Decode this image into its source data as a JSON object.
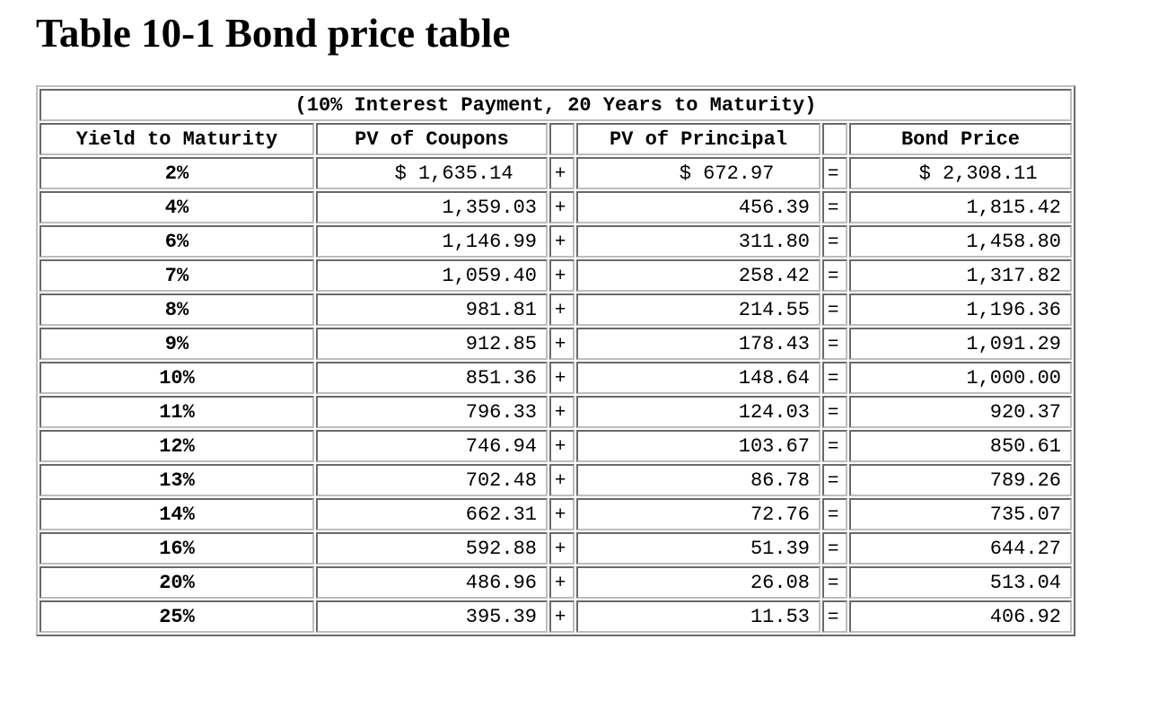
{
  "title": "Table 10-1 Bond price table",
  "table": {
    "caption": "(10% Interest Payment, 20 Years to Maturity)",
    "headers": {
      "yield": "Yield to Maturity",
      "coupons": "PV of Coupons",
      "principal": "PV of Principal",
      "price": "Bond Price"
    },
    "rows": [
      {
        "yield": "2%",
        "coupons": "$ 1,635.14  ",
        "op1": "+",
        "principal": "$ 672.97   ",
        "op2": "=",
        "price": "$ 2,308.11  "
      },
      {
        "yield": "4%",
        "coupons": "1,359.03",
        "op1": "+",
        "principal": "456.39",
        "op2": "=",
        "price": "1,815.42"
      },
      {
        "yield": "6%",
        "coupons": "1,146.99",
        "op1": "+",
        "principal": "311.80",
        "op2": "=",
        "price": "1,458.80"
      },
      {
        "yield": "7%",
        "coupons": "1,059.40",
        "op1": "+",
        "principal": "258.42",
        "op2": "=",
        "price": "1,317.82"
      },
      {
        "yield": "8%",
        "coupons": "981.81",
        "op1": "+",
        "principal": "214.55",
        "op2": "=",
        "price": "1,196.36"
      },
      {
        "yield": "9%",
        "coupons": "912.85",
        "op1": "+",
        "principal": "178.43",
        "op2": "=",
        "price": "1,091.29"
      },
      {
        "yield": "10%",
        "coupons": "851.36",
        "op1": "+",
        "principal": "148.64",
        "op2": "=",
        "price": "1,000.00"
      },
      {
        "yield": "11%",
        "coupons": "796.33",
        "op1": "+",
        "principal": "124.03",
        "op2": "=",
        "price": "920.37"
      },
      {
        "yield": "12%",
        "coupons": "746.94",
        "op1": "+",
        "principal": "103.67",
        "op2": "=",
        "price": "850.61"
      },
      {
        "yield": "13%",
        "coupons": "702.48",
        "op1": "+",
        "principal": "86.78",
        "op2": "=",
        "price": "789.26"
      },
      {
        "yield": "14%",
        "coupons": "662.31",
        "op1": "+",
        "principal": "72.76",
        "op2": "=",
        "price": "735.07"
      },
      {
        "yield": "16%",
        "coupons": "592.88",
        "op1": "+",
        "principal": "51.39",
        "op2": "=",
        "price": "644.27"
      },
      {
        "yield": "20%",
        "coupons": "486.96",
        "op1": "+",
        "principal": "26.08",
        "op2": "=",
        "price": "513.04"
      },
      {
        "yield": "25%",
        "coupons": "395.39",
        "op1": "+",
        "principal": "11.53",
        "op2": "=",
        "price": "406.92"
      }
    ]
  }
}
